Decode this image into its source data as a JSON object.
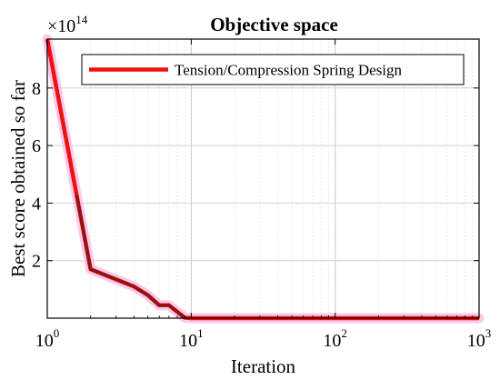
{
  "chart_data": {
    "type": "line",
    "title": "Objective space",
    "xlabel": "Iteration",
    "ylabel": "Best score obtained so far",
    "x_scale": "log",
    "xlim": [
      1,
      1000
    ],
    "ylim": [
      0,
      9.7
    ],
    "y_multiplier": "×10",
    "y_multiplier_exponent": "14",
    "x_ticks": [
      {
        "value": 1,
        "base": "10",
        "exp": "0"
      },
      {
        "value": 10,
        "base": "10",
        "exp": "1"
      },
      {
        "value": 100,
        "base": "10",
        "exp": "2"
      },
      {
        "value": 1000,
        "base": "10",
        "exp": "3"
      }
    ],
    "y_ticks": [
      {
        "value": 2,
        "label": "2"
      },
      {
        "value": 4,
        "label": "4"
      },
      {
        "value": 6,
        "label": "6"
      },
      {
        "value": 8,
        "label": "8"
      }
    ],
    "grid": true,
    "minor_grid_x": true,
    "legend_position": "top-right",
    "series": [
      {
        "name": "Tension/Compression Spring Design",
        "color": "#ee1111",
        "shadow_color": "#7a1818",
        "x": [
          1,
          2,
          3,
          4,
          5,
          6,
          7,
          8,
          9,
          10,
          20,
          50,
          100,
          200,
          500,
          1000
        ],
        "y": [
          9.7,
          1.7,
          1.35,
          1.1,
          0.8,
          0.45,
          0.45,
          0.22,
          0.02,
          0.0,
          0.0,
          0.0,
          0.0,
          0.0,
          0.0,
          0.0
        ]
      }
    ]
  }
}
